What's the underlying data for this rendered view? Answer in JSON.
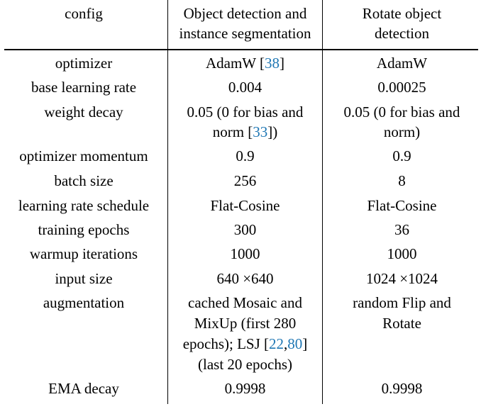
{
  "table": {
    "header": {
      "config": "config",
      "col1_line1": "Object detection and",
      "col1_line2": "instance segmentation",
      "col2_line1": "Rotate object",
      "col2_line2": "detection"
    },
    "rows": {
      "optimizer": {
        "label": "optimizer",
        "v1_text": "AdamW [",
        "v1_cite": "38",
        "v1_end": "]",
        "v2": "AdamW"
      },
      "base_lr": {
        "label": "base learning rate",
        "v1": "0.004",
        "v2": "0.00025"
      },
      "weight_decay": {
        "label": "weight decay",
        "v1_line1": "0.05 (0 for bias and",
        "v1_line2_text": "norm [",
        "v1_line2_cite": "33",
        "v1_line2_end": "])",
        "v2_line1": "0.05 (0 for bias and",
        "v2_line2": "norm)"
      },
      "momentum": {
        "label": "optimizer momentum",
        "v1": "0.9",
        "v2": "0.9"
      },
      "batch_size": {
        "label": "batch size",
        "v1": "256",
        "v2": "8"
      },
      "lr_schedule": {
        "label": "learning rate schedule",
        "v1": "Flat-Cosine",
        "v2": "Flat-Cosine"
      },
      "epochs": {
        "label": "training epochs",
        "v1": "300",
        "v2": "36"
      },
      "warmup": {
        "label": "warmup iterations",
        "v1": "1000",
        "v2": "1000"
      },
      "input_size": {
        "label": "input size",
        "v1": "640 ×640",
        "v2": "1024 ×1024"
      },
      "augmentation": {
        "label": "augmentation",
        "v1_line1": "cached Mosaic and",
        "v1_line2": "MixUp (first 280",
        "v1_line3_text": "epochs); LSJ [",
        "v1_line3_cite_a": "22",
        "v1_line3_sep": ",",
        "v1_line3_cite_b": "80",
        "v1_line3_end": "]",
        "v1_line4": "(last 20 epochs)",
        "v2_line1": "random Flip and",
        "v2_line2": "Rotate"
      },
      "ema": {
        "label": "EMA decay",
        "v1": "0.9998",
        "v2": "0.9998"
      }
    },
    "colors": {
      "citation": "#1f77b4"
    }
  }
}
